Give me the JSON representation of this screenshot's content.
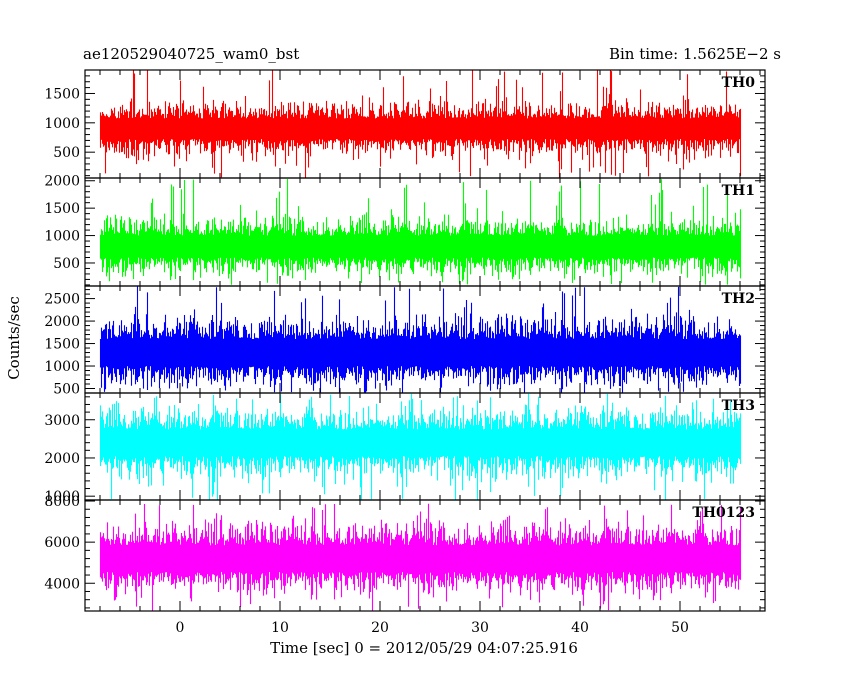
{
  "chart_data": {
    "type": "line",
    "title_left": "ae120529040725_wam0_bst",
    "title_right": "Bin time: 1.5625E−2 s",
    "xlabel": "Time [sec] 0 = 2012/05/29 04:07:25.916",
    "ylabel": "Counts/sec",
    "xlim": [
      -9.5,
      58.5
    ],
    "x_range": [
      -8,
      56
    ],
    "bin_time": 0.015625,
    "x_ticks": [
      0,
      10,
      20,
      30,
      40,
      50
    ],
    "x_tick_labels": [
      "0",
      "10",
      "20",
      "30",
      "40",
      "50"
    ],
    "series": [
      {
        "name": "TH0",
        "color": "#ff0000",
        "ylim": [
          60,
          1900
        ],
        "mean": 900,
        "low_range": [
          50,
          400
        ],
        "high_range": [
          1250,
          1950
        ],
        "y_ticks": [
          500,
          1000,
          1500
        ],
        "y_tick_labels": [
          "500",
          "1000",
          "1500"
        ]
      },
      {
        "name": "TH1",
        "color": "#00ff00",
        "ylim": [
          80,
          2050
        ],
        "mean": 800,
        "low_range": [
          100,
          400
        ],
        "high_range": [
          1200,
          2050
        ],
        "y_ticks": [
          500,
          1000,
          1500,
          2000
        ],
        "y_tick_labels": [
          "500",
          "1000",
          "1500",
          "2000"
        ]
      },
      {
        "name": "TH2",
        "color": "#0000ff",
        "ylim": [
          400,
          2780
        ],
        "mean": 1300,
        "low_range": [
          400,
          800
        ],
        "high_range": [
          1900,
          2780
        ],
        "y_ticks": [
          500,
          1000,
          1500,
          2000,
          2500
        ],
        "y_tick_labels": [
          "500",
          "1000",
          "1500",
          "2000",
          "2500"
        ]
      },
      {
        "name": "TH3",
        "color": "#00ffff",
        "ylim": [
          900,
          3700
        ],
        "mean": 2400,
        "low_range": [
          850,
          1500
        ],
        "high_range": [
          3100,
          3700
        ],
        "y_ticks": [
          1000,
          2000,
          3000
        ],
        "y_tick_labels": [
          "1000",
          "2000",
          "3000"
        ]
      },
      {
        "name": "TH0123",
        "color": "#ff00ff",
        "ylim": [
          2650,
          8050
        ],
        "mean": 5200,
        "low_range": [
          2650,
          4200
        ],
        "high_range": [
          6500,
          7900
        ],
        "y_ticks": [
          4000,
          6000,
          8000
        ],
        "y_tick_labels": [
          "4000",
          "6000",
          "8000"
        ]
      }
    ]
  }
}
